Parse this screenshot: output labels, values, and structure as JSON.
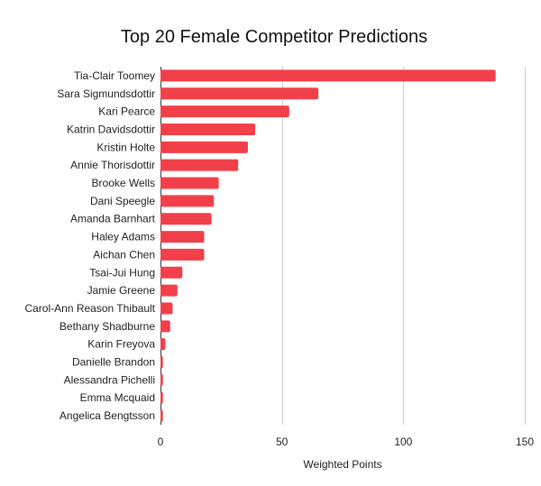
{
  "chart_data": {
    "type": "bar",
    "orientation": "horizontal",
    "title": "Top 20 Female Competitor Predictions",
    "xlabel": "Weighted Points",
    "ylabel": "",
    "xlim": [
      0,
      150
    ],
    "xticks": [
      0,
      50,
      100,
      150
    ],
    "grid": true,
    "legend": "none",
    "bar_color": "#f14049",
    "categories": [
      "Tia-Clair Toomey",
      "Sara Sigmundsdottir",
      "Kari Pearce",
      "Katrin Davidsdottir",
      "Kristin Holte",
      "Annie Thorisdottir",
      "Brooke Wells",
      "Dani Speegle",
      "Amanda Barnhart",
      "Haley Adams",
      "Aichan Chen",
      "Tsai-Jui Hung",
      "Jamie Greene",
      "Carol-Ann Reason Thibault",
      "Bethany Shadburne",
      "Karin Freyova",
      "Danielle Brandon",
      "Alessandra Pichelli",
      "Emma Mcquaid",
      "Angelica Bengtsson"
    ],
    "values": [
      138,
      65,
      53,
      39,
      36,
      32,
      24,
      22,
      21,
      18,
      18,
      9,
      7,
      5,
      4,
      2,
      1,
      1,
      1,
      1
    ]
  }
}
